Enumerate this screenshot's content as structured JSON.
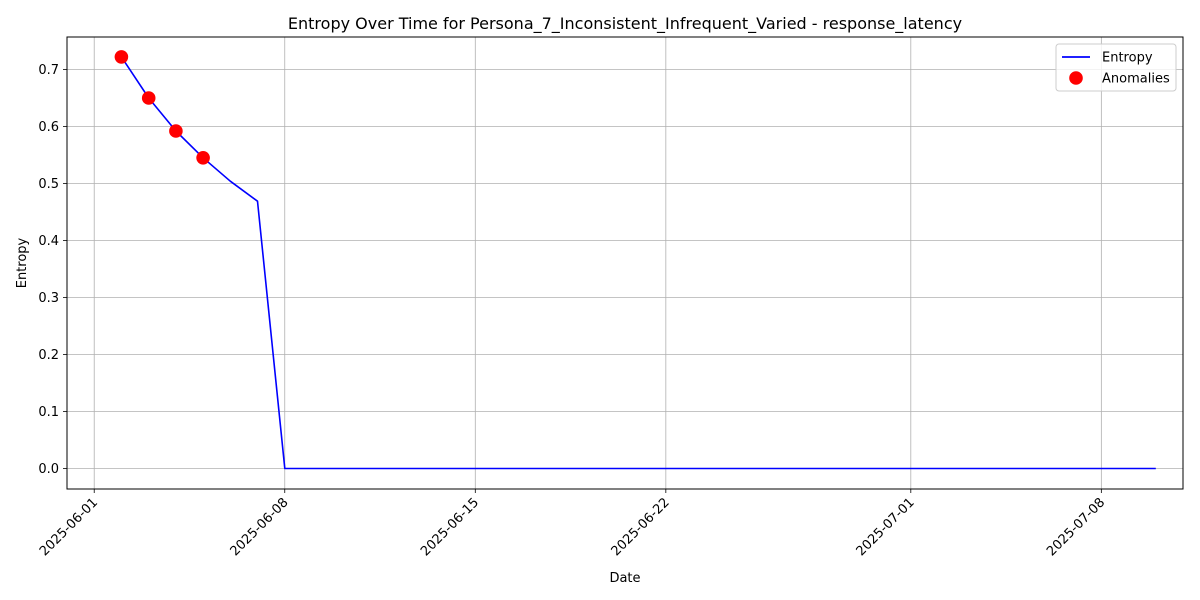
{
  "chart_data": {
    "type": "line",
    "title": "Entropy Over Time for Persona_7_Inconsistent_Infrequent_Varied - response_latency",
    "xlabel": "Date",
    "ylabel": "Entropy",
    "xlim": [
      "2025-05-31",
      "2025-07-11"
    ],
    "ylim": [
      -0.036,
      0.757
    ],
    "grid": true,
    "legend_position": "top-right",
    "x_ticks": [
      "2025-06-01",
      "2025-06-08",
      "2025-06-15",
      "2025-06-22",
      "2025-07-01",
      "2025-07-08"
    ],
    "y_ticks": [
      "0.0",
      "0.1",
      "0.2",
      "0.3",
      "0.4",
      "0.5",
      "0.6",
      "0.7"
    ],
    "series": [
      {
        "name": "Entropy",
        "kind": "line",
        "color": "#0000ff",
        "x": [
          "2025-06-02",
          "2025-06-03",
          "2025-06-04",
          "2025-06-05",
          "2025-06-06",
          "2025-06-07",
          "2025-06-08",
          "2025-07-10"
        ],
        "y": [
          0.722,
          0.65,
          0.592,
          0.545,
          0.504,
          0.469,
          0.0,
          0.0
        ]
      },
      {
        "name": "Anomalies",
        "kind": "scatter",
        "color": "#ff0000",
        "x": [
          "2025-06-02",
          "2025-06-03",
          "2025-06-04",
          "2025-06-05"
        ],
        "y": [
          0.722,
          0.65,
          0.592,
          0.545
        ]
      }
    ]
  }
}
